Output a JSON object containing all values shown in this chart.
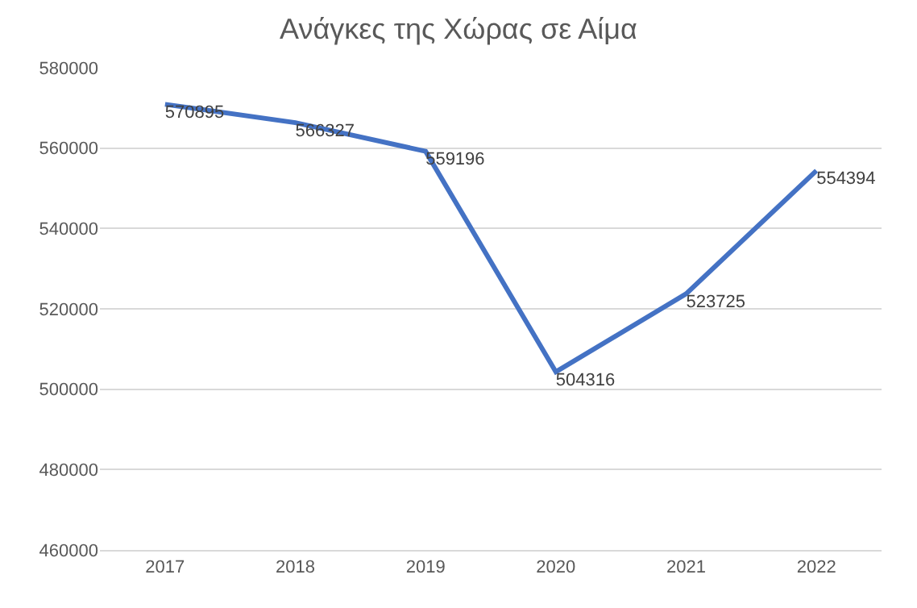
{
  "chart_data": {
    "type": "line",
    "title": "Ανάγκες της Χώρας σε Αίμα",
    "categories": [
      "2017",
      "2018",
      "2019",
      "2020",
      "2021",
      "2022"
    ],
    "series": [
      {
        "color": "#4472c4",
        "values": [
          570895,
          566327,
          559196,
          504316,
          523725,
          554394
        ]
      }
    ],
    "data_labels": true,
    "ylim": [
      460000,
      580000
    ],
    "yticks": [
      460000,
      480000,
      500000,
      520000,
      540000,
      560000,
      580000
    ],
    "grid": "y",
    "marker": "none",
    "line_style": "solid"
  }
}
